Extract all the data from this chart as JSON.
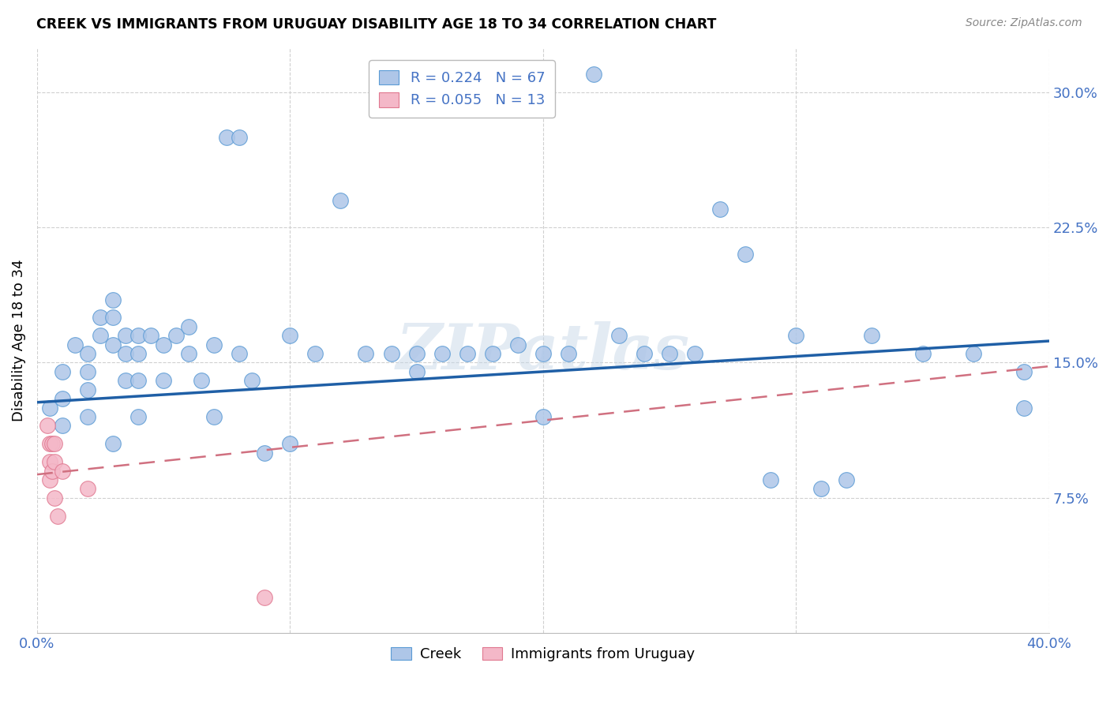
{
  "title": "CREEK VS IMMIGRANTS FROM URUGUAY DISABILITY AGE 18 TO 34 CORRELATION CHART",
  "source": "Source: ZipAtlas.com",
  "ylabel": "Disability Age 18 to 34",
  "xlim": [
    0.0,
    0.4
  ],
  "ylim": [
    0.0,
    0.325
  ],
  "xticks": [
    0.0,
    0.1,
    0.2,
    0.3,
    0.4
  ],
  "xticklabels": [
    "0.0%",
    "",
    "",
    "",
    "40.0%"
  ],
  "yticks": [
    0.075,
    0.15,
    0.225,
    0.3
  ],
  "yticklabels": [
    "7.5%",
    "15.0%",
    "22.5%",
    "30.0%"
  ],
  "grid_color": "#d0d0d0",
  "axis_color": "#4472c4",
  "creek_color": "#aec6e8",
  "creek_edge": "#5b9bd5",
  "uruguay_color": "#f4b8c8",
  "uruguay_edge": "#e07890",
  "trend_creek_color": "#1f5fa6",
  "trend_uruguay_color": "#d07080",
  "watermark": "ZIPatlas",
  "creek_x": [
    0.005,
    0.01,
    0.01,
    0.01,
    0.015,
    0.02,
    0.02,
    0.02,
    0.02,
    0.025,
    0.025,
    0.03,
    0.03,
    0.03,
    0.03,
    0.035,
    0.035,
    0.035,
    0.04,
    0.04,
    0.04,
    0.04,
    0.045,
    0.05,
    0.05,
    0.055,
    0.06,
    0.06,
    0.065,
    0.07,
    0.07,
    0.075,
    0.08,
    0.08,
    0.085,
    0.09,
    0.1,
    0.1,
    0.11,
    0.12,
    0.13,
    0.14,
    0.15,
    0.15,
    0.16,
    0.17,
    0.18,
    0.19,
    0.2,
    0.2,
    0.21,
    0.22,
    0.23,
    0.24,
    0.25,
    0.26,
    0.27,
    0.28,
    0.29,
    0.3,
    0.31,
    0.32,
    0.33,
    0.35,
    0.37,
    0.39,
    0.39
  ],
  "creek_y": [
    0.125,
    0.145,
    0.13,
    0.115,
    0.16,
    0.155,
    0.145,
    0.135,
    0.12,
    0.175,
    0.165,
    0.185,
    0.175,
    0.16,
    0.105,
    0.165,
    0.155,
    0.14,
    0.165,
    0.155,
    0.14,
    0.12,
    0.165,
    0.16,
    0.14,
    0.165,
    0.17,
    0.155,
    0.14,
    0.16,
    0.12,
    0.275,
    0.275,
    0.155,
    0.14,
    0.1,
    0.165,
    0.105,
    0.155,
    0.24,
    0.155,
    0.155,
    0.155,
    0.145,
    0.155,
    0.155,
    0.155,
    0.16,
    0.155,
    0.12,
    0.155,
    0.31,
    0.165,
    0.155,
    0.155,
    0.155,
    0.235,
    0.21,
    0.085,
    0.165,
    0.08,
    0.085,
    0.165,
    0.155,
    0.155,
    0.145,
    0.125
  ],
  "uruguay_x": [
    0.004,
    0.005,
    0.005,
    0.005,
    0.006,
    0.006,
    0.007,
    0.007,
    0.007,
    0.008,
    0.01,
    0.02,
    0.09
  ],
  "uruguay_y": [
    0.115,
    0.105,
    0.095,
    0.085,
    0.105,
    0.09,
    0.105,
    0.095,
    0.075,
    0.065,
    0.09,
    0.08,
    0.02
  ],
  "creek_trend_x0": 0.0,
  "creek_trend_y0": 0.128,
  "creek_trend_x1": 0.4,
  "creek_trend_y1": 0.162,
  "uru_trend_x0": 0.0,
  "uru_trend_y0": 0.088,
  "uru_trend_x1": 0.4,
  "uru_trend_y1": 0.148
}
